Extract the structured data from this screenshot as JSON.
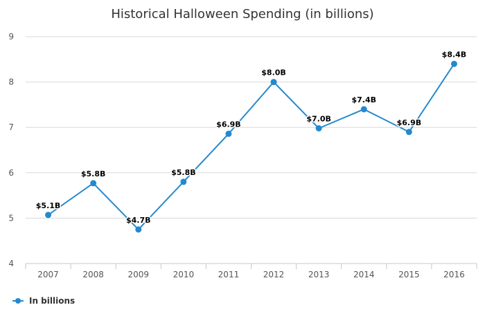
{
  "chart_data": {
    "type": "line",
    "title": "Historical Halloween Spending (in billions)",
    "xlabel": "",
    "ylabel": "",
    "categories": [
      "2007",
      "2008",
      "2009",
      "2010",
      "2011",
      "2012",
      "2013",
      "2014",
      "2015",
      "2016"
    ],
    "series": [
      {
        "name": "In billions",
        "values": [
          5.07,
          5.77,
          4.75,
          5.8,
          6.86,
          8.0,
          6.98,
          7.4,
          6.9,
          8.4
        ],
        "labels": [
          "$5.1B",
          "$5.8B",
          "$4.7B",
          "$5.8B",
          "$6.9B",
          "$8.0B",
          "$7.0B",
          "$7.4B",
          "$6.9B",
          "$8.4B"
        ],
        "color": "#2389cf"
      }
    ],
    "ylim": [
      4,
      9
    ],
    "yticks": [
      4,
      5,
      6,
      7,
      8,
      9
    ],
    "grid": true,
    "legend_position": "bottom-left"
  }
}
